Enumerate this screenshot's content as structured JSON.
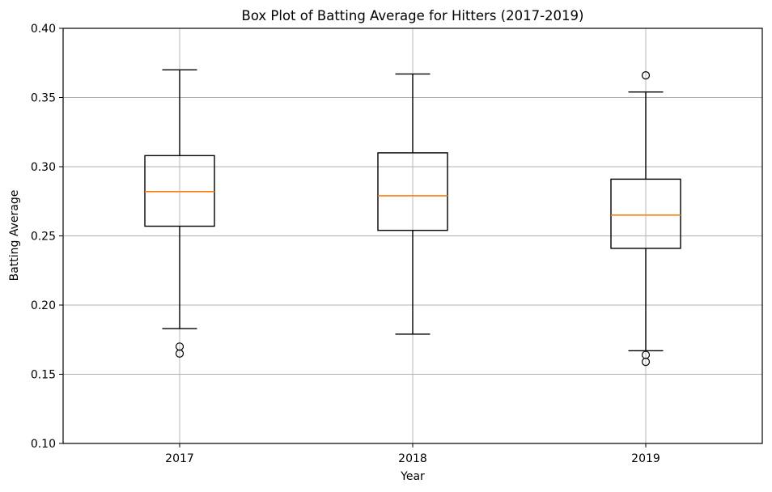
{
  "chart_data": {
    "type": "box",
    "title": "Box Plot of Batting Average for Hitters (2017-2019)",
    "xlabel": "Year",
    "ylabel": "Batting Average",
    "ylim": [
      0.1,
      0.4
    ],
    "yticks": [
      "0.10",
      "0.15",
      "0.20",
      "0.25",
      "0.30",
      "0.35",
      "0.40"
    ],
    "categories": [
      "2017",
      "2018",
      "2019"
    ],
    "grid": true,
    "boxes": [
      {
        "category": "2017",
        "whisker_low": 0.183,
        "q1": 0.257,
        "median": 0.282,
        "q3": 0.308,
        "whisker_high": 0.37,
        "outliers": [
          0.17,
          0.165
        ]
      },
      {
        "category": "2018",
        "whisker_low": 0.179,
        "q1": 0.254,
        "median": 0.279,
        "q3": 0.31,
        "whisker_high": 0.367,
        "outliers": []
      },
      {
        "category": "2019",
        "whisker_low": 0.167,
        "q1": 0.241,
        "median": 0.265,
        "q3": 0.291,
        "whisker_high": 0.354,
        "outliers": [
          0.366,
          0.164,
          0.159
        ]
      }
    ],
    "colors": {
      "box": "#000000",
      "median": "#ff7f0e",
      "grid": "#b0b0b0"
    }
  }
}
